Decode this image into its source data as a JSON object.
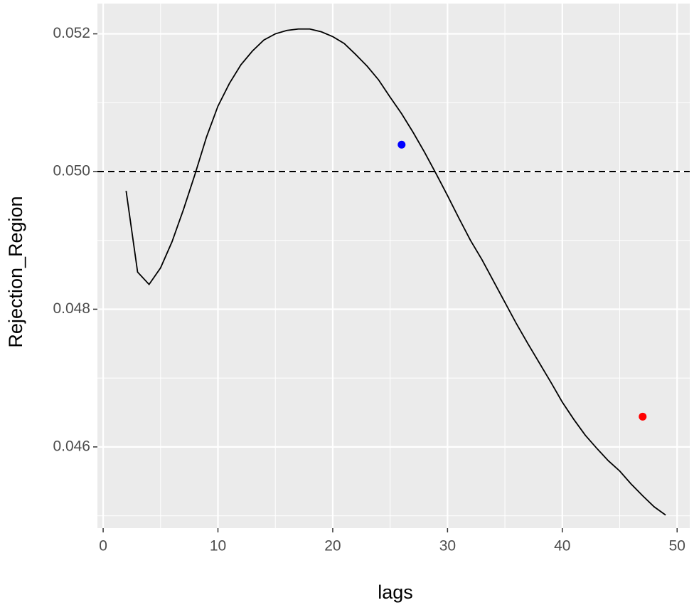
{
  "chart_data": {
    "type": "line",
    "x_label": "lags",
    "y_label": "Rejection_Region",
    "x": [
      2,
      3,
      4,
      5,
      6,
      7,
      8,
      9,
      10,
      11,
      12,
      13,
      14,
      15,
      16,
      17,
      18,
      19,
      20,
      21,
      22,
      23,
      24,
      25,
      26,
      27,
      28,
      29,
      30,
      31,
      32,
      33,
      34,
      35,
      36,
      37,
      38,
      39,
      40,
      41,
      42,
      43,
      44,
      45,
      46,
      47,
      48,
      49
    ],
    "series": [
      {
        "color": "#000000",
        "values": [
          0.04972,
          0.04854,
          0.04836,
          0.0486,
          0.04898,
          0.04945,
          0.04996,
          0.0505,
          0.05095,
          0.05128,
          0.05155,
          0.05175,
          0.05191,
          0.052,
          0.05205,
          0.05207,
          0.05207,
          0.05203,
          0.05196,
          0.05186,
          0.0517,
          0.05153,
          0.05133,
          0.05108,
          0.05084,
          0.05057,
          0.05028,
          0.04997,
          0.04965,
          0.04932,
          0.049,
          0.04872,
          0.04841,
          0.0481,
          0.04779,
          0.0475,
          0.04722,
          0.04694,
          0.04665,
          0.0464,
          0.04617,
          0.04598,
          0.0458,
          0.04565,
          0.04546,
          0.04529,
          0.04513,
          0.04501
        ]
      }
    ],
    "points": [
      {
        "x": 26,
        "y": 0.05039,
        "color": "#0000ff"
      },
      {
        "x": 47,
        "y": 0.04644,
        "color": "#ff0000"
      }
    ],
    "hline": {
      "y": 0.05,
      "dashed": true,
      "color": "#000000"
    },
    "xlim": [
      -0.5,
      51.1
    ],
    "xticks": [
      0,
      10,
      20,
      30,
      40,
      50
    ],
    "ylim": [
      0.04482,
      0.05244
    ],
    "yticks": [
      {
        "value": 0.046,
        "label": "0.046"
      },
      {
        "value": 0.048,
        "label": "0.048"
      },
      {
        "value": 0.05,
        "label": "0.050"
      },
      {
        "value": 0.052,
        "label": "0.052"
      }
    ],
    "grid": true,
    "minor_grid": true
  }
}
